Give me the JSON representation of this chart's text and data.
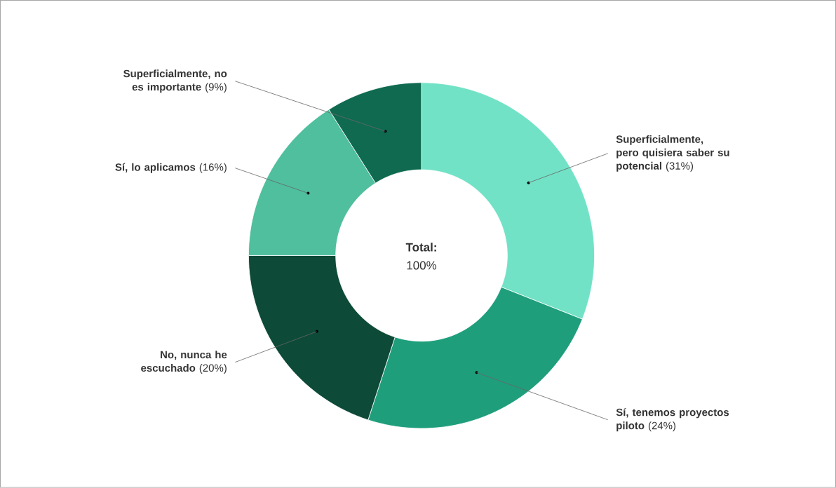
{
  "chart_data": {
    "type": "donut",
    "categories": [
      "Superficialmente, pero quisiera saber su potencial",
      "Sí, tenemos proyectos piloto",
      "No, nunca he escuchado",
      "Sí, lo aplicamos",
      "Superficialmente, no es importante"
    ],
    "values": [
      31,
      24,
      20,
      16,
      9
    ],
    "value_labels": [
      "(31%)",
      "(24%)",
      "(20%)",
      "(16%)",
      "(9%)"
    ],
    "colors": [
      "#72e2c6",
      "#1f9e7c",
      "#0d4a37",
      "#4fbf9d",
      "#0f6a50"
    ],
    "annotations": [
      "Total:",
      "100%"
    ]
  }
}
